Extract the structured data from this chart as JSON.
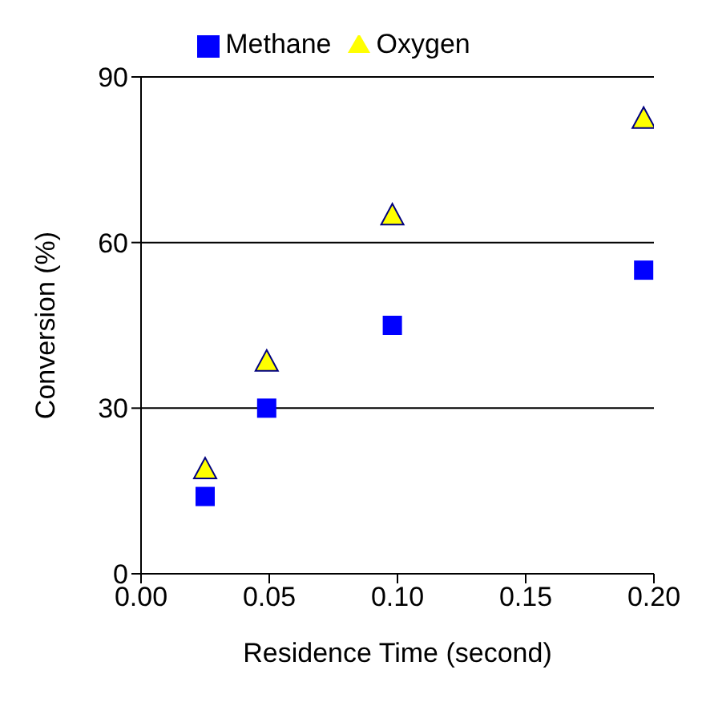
{
  "chart_data": {
    "type": "scatter",
    "xlabel": "Residence Time (second)",
    "ylabel": "Conversion (%)",
    "series": [
      {
        "name": "Methane",
        "color": "#0000ff",
        "marker": "square",
        "x": [
          0.025,
          0.049,
          0.098,
          0.196
        ],
        "values": [
          14,
          30,
          45,
          55
        ]
      },
      {
        "name": "Oxygen",
        "color": "#ffff00",
        "marker": "triangle",
        "x": [
          0.025,
          0.049,
          0.098,
          0.196
        ],
        "values": [
          19,
          38.5,
          65,
          82.5
        ]
      }
    ],
    "xlim": [
      0,
      0.2
    ],
    "xticks": [
      {
        "value": 0,
        "label": "0.00"
      },
      {
        "value": 0.05,
        "label": "0.05"
      },
      {
        "value": 0.1,
        "label": "0.10"
      },
      {
        "value": 0.15,
        "label": "0.15"
      },
      {
        "value": 0.2,
        "label": "0.20"
      }
    ],
    "ylim": [
      0,
      90
    ],
    "yticks": [
      0,
      30,
      60,
      90
    ],
    "grid": "y",
    "legend": "top"
  }
}
